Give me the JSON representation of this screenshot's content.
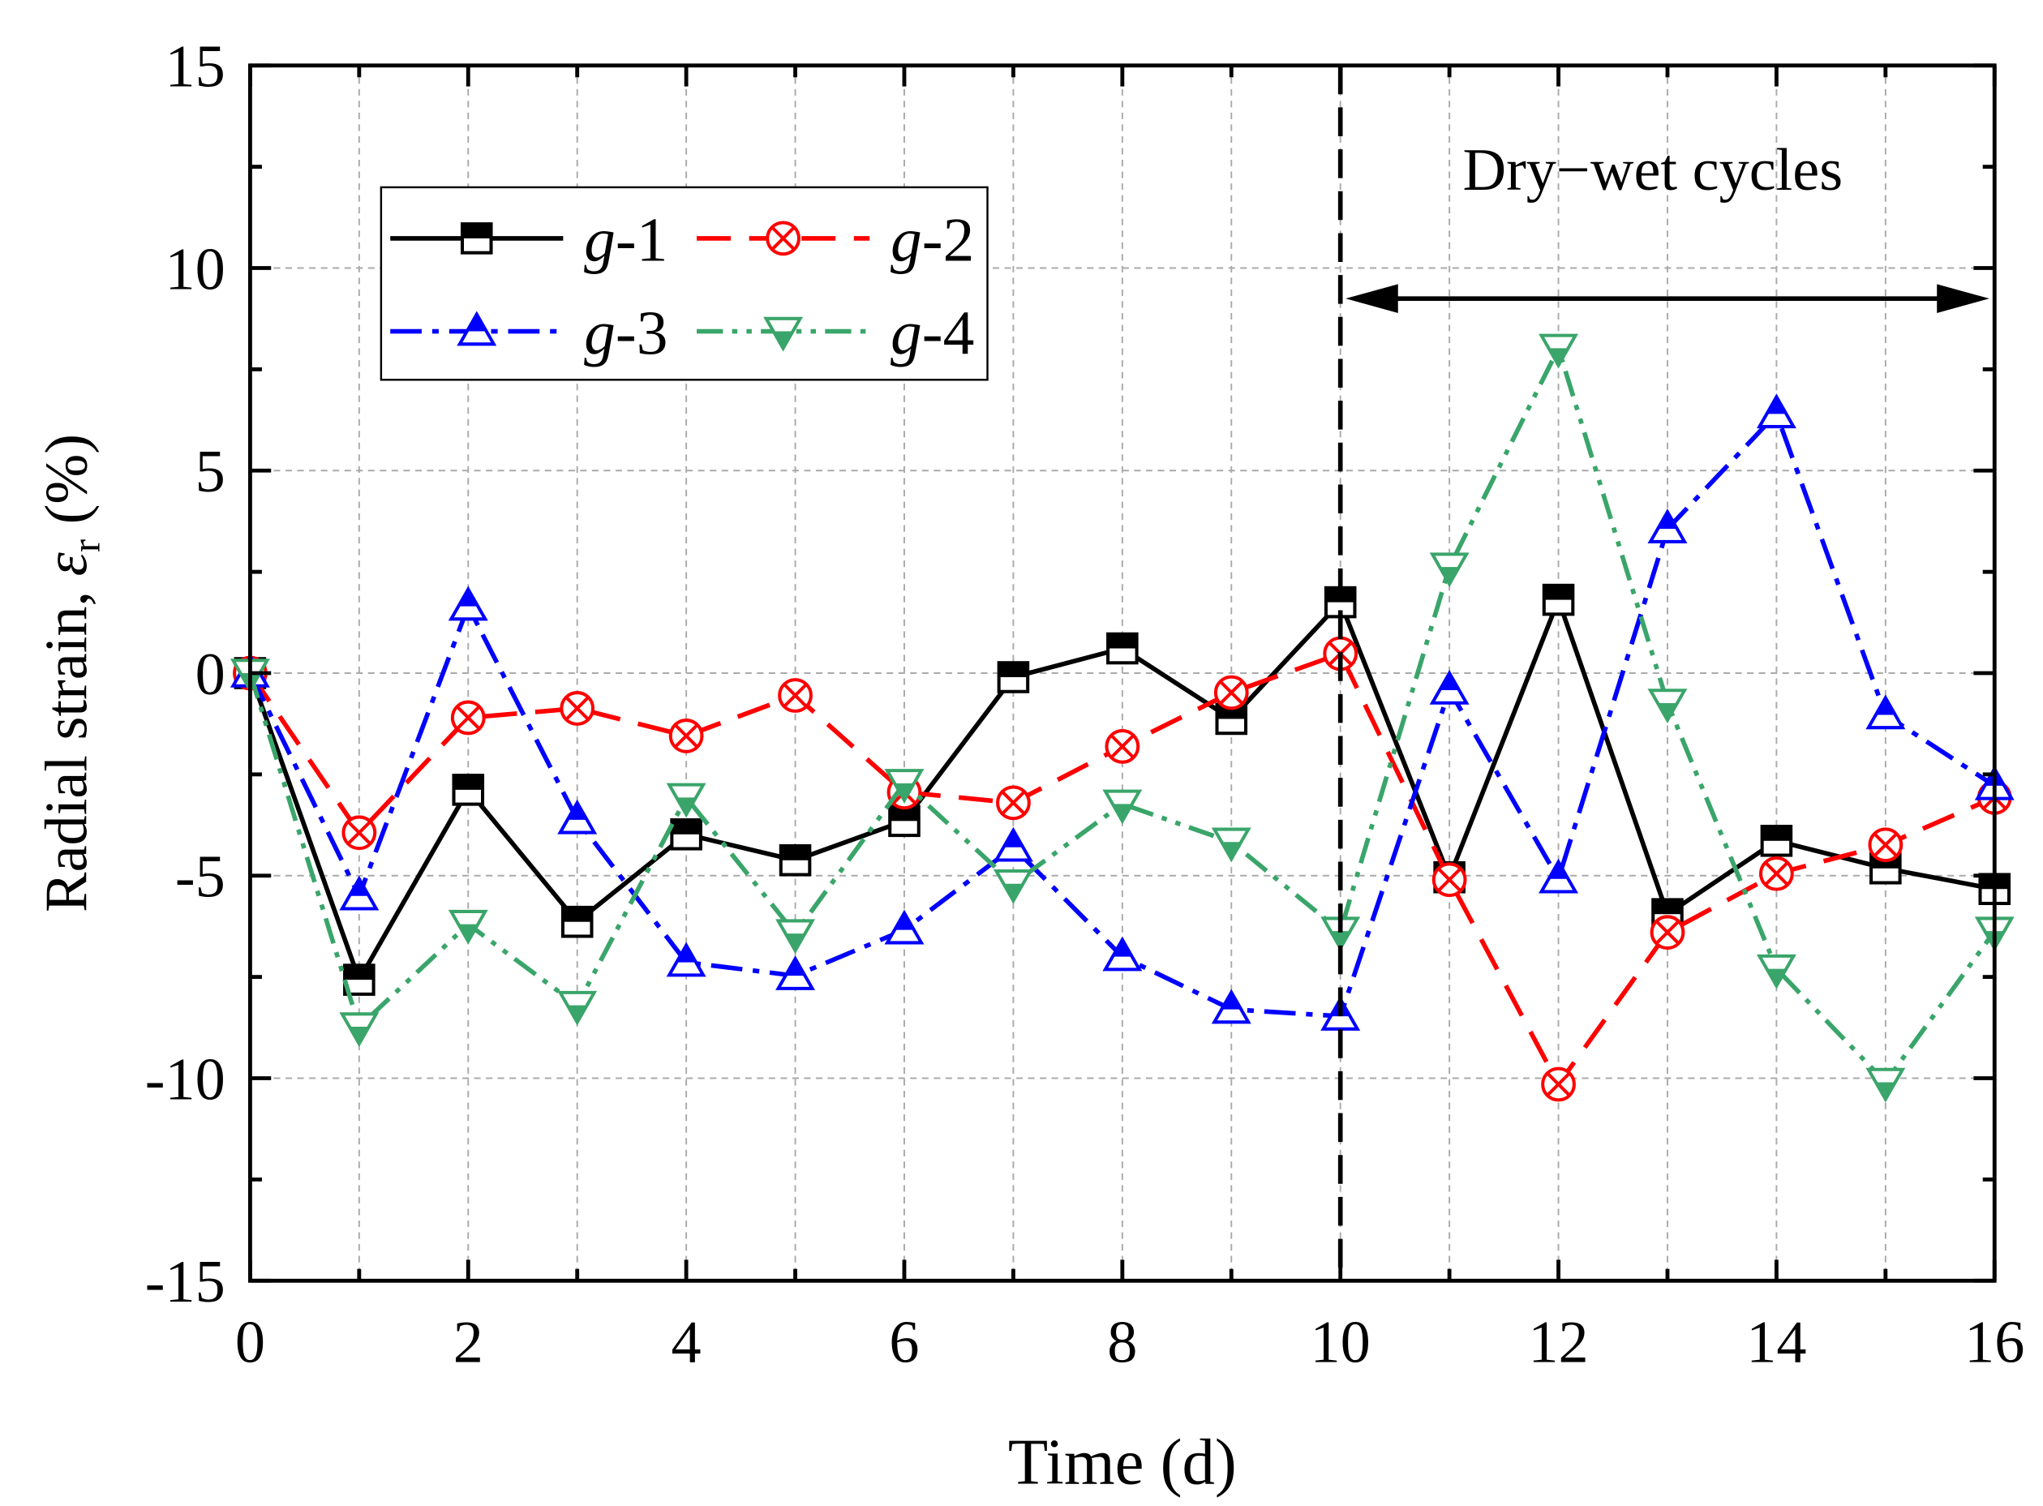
{
  "chart_data": {
    "type": "line",
    "xlabel": "Time (d)",
    "ylabel_prefix": "Radial strain, ",
    "ylabel_symbol": "ε",
    "ylabel_sub": "r",
    "ylabel_suffix": " (%)",
    "xlim": [
      0,
      16
    ],
    "ylim": [
      -15,
      15
    ],
    "xticks": [
      "0",
      "2",
      "4",
      "6",
      "8",
      "10",
      "12",
      "14",
      "16"
    ],
    "yticks": [
      "-15",
      "-10",
      "-5",
      "0",
      "5",
      "10",
      "15"
    ],
    "grid": true,
    "legend_placement": "top-left",
    "annotation": "Dry−wet cycles",
    "annotation_range": [
      10,
      16
    ],
    "divider_x": 10,
    "x": [
      0,
      1,
      2,
      3,
      4,
      5,
      6,
      7,
      8,
      9,
      10,
      11,
      12,
      13,
      14,
      15,
      16
    ],
    "series": [
      {
        "name_italic": "g",
        "name_suffix": "-1",
        "color": "#000000",
        "dash": "",
        "marker": "square",
        "values": [
          0,
          -7.57,
          -2.88,
          -6.14,
          -3.98,
          -4.62,
          -3.65,
          -0.1,
          0.61,
          -1.13,
          1.75,
          -5.04,
          1.81,
          -5.95,
          -4.14,
          -4.82,
          -5.33
        ]
      },
      {
        "name_italic": "g",
        "name_suffix": "-2",
        "color": "#ff0000",
        "dash": "26 14",
        "marker": "circle-x",
        "values": [
          0,
          -3.94,
          -1.1,
          -0.87,
          -1.55,
          -0.55,
          -2.94,
          -3.2,
          -1.81,
          -0.48,
          0.48,
          -5.1,
          -10.15,
          -6.4,
          -4.95,
          -4.24,
          -3.07
        ]
      },
      {
        "name_italic": "g",
        "name_suffix": "-3",
        "color": "#0000ff",
        "dash": "24 8 5 8",
        "marker": "triangle-up",
        "values": [
          0,
          -5.5,
          1.65,
          -3.62,
          -7.14,
          -7.47,
          -6.34,
          -4.3,
          -7.0,
          -8.3,
          -8.47,
          -0.42,
          -5.08,
          3.56,
          6.4,
          -1.03,
          -2.78
        ]
      },
      {
        "name_italic": "g",
        "name_suffix": "-4",
        "color": "#3aa56a",
        "dash": "20 7 4 7 4 7",
        "marker": "triangle-down",
        "values": [
          0,
          -8.73,
          -6.2,
          -8.2,
          -3.07,
          -6.43,
          -2.72,
          -5.2,
          -3.23,
          -4.17,
          -6.37,
          2.62,
          8.02,
          -0.74,
          -7.3,
          -10.1,
          -6.37
        ]
      }
    ]
  }
}
